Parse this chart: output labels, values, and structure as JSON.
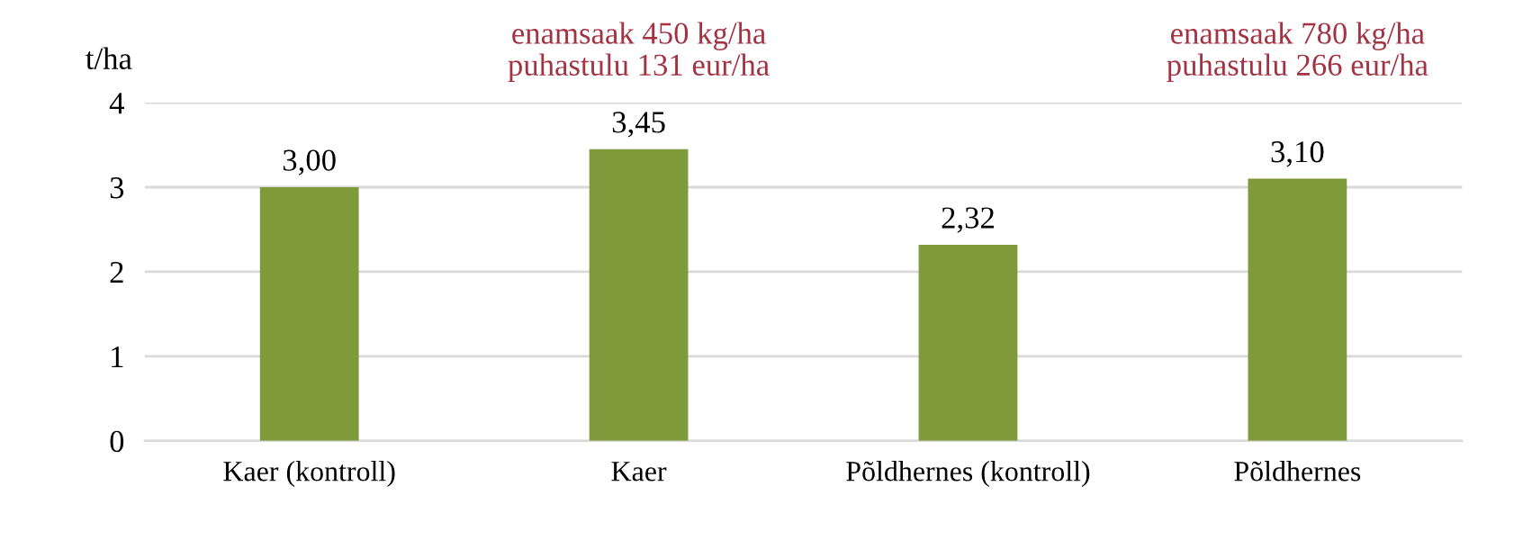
{
  "chart_data": {
    "type": "bar",
    "ylabel": "t/ha",
    "categories": [
      "Kaer (kontroll)",
      "Kaer",
      "Põldhernes (kontroll)",
      "Põldhernes"
    ],
    "values": [
      3.0,
      3.45,
      2.32,
      3.1
    ],
    "value_labels": [
      "3,00",
      "3,45",
      "2,32",
      "3,10"
    ],
    "color": "#7f9a3a",
    "ylim": [
      0,
      4
    ],
    "yticks": [
      0,
      1,
      2,
      3,
      4
    ],
    "grid": "y",
    "legend": false,
    "annotations": [
      "enamsaak 450 kg/ha\npuhastulu 131 eur/ha",
      "enamsaak 780 kg/ha\npuhastulu 266 eur/ha"
    ]
  }
}
